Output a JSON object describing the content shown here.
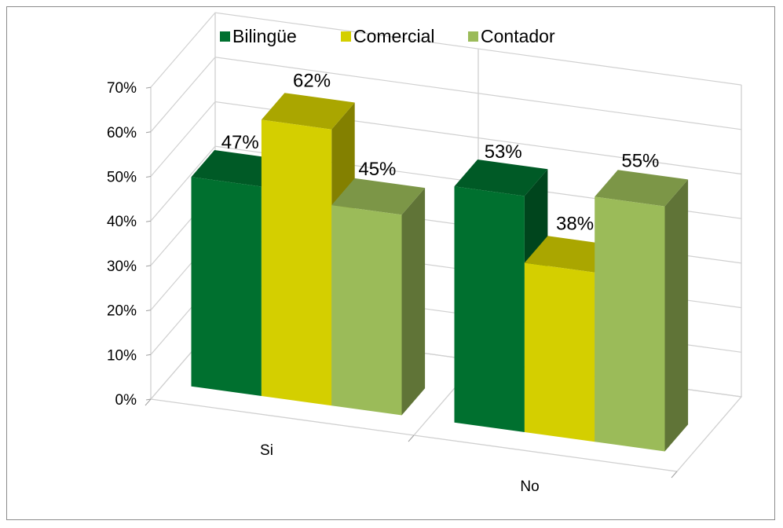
{
  "chart_data": {
    "type": "bar",
    "title": "",
    "xlabel": "",
    "ylabel": "",
    "categories": [
      "Si",
      "No"
    ],
    "series": [
      {
        "name": "Bilingüe",
        "values": [
          0.47,
          0.53
        ],
        "labels": [
          "47%",
          "53%"
        ],
        "color": "#00702f"
      },
      {
        "name": "Comercial",
        "values": [
          0.62,
          0.38
        ],
        "labels": [
          "62%",
          "38%"
        ],
        "color": "#d4cf00"
      },
      {
        "name": "Contador",
        "values": [
          0.45,
          0.55
        ],
        "labels": [
          "45%",
          "55%"
        ],
        "color": "#9bbb59"
      }
    ],
    "ylim": [
      0,
      0.7
    ],
    "yticks": [
      "0%",
      "10%",
      "20%",
      "30%",
      "40%",
      "50%",
      "60%",
      "70%"
    ],
    "grid": true,
    "legend_position": "top",
    "style": "3d-clustered-column"
  }
}
